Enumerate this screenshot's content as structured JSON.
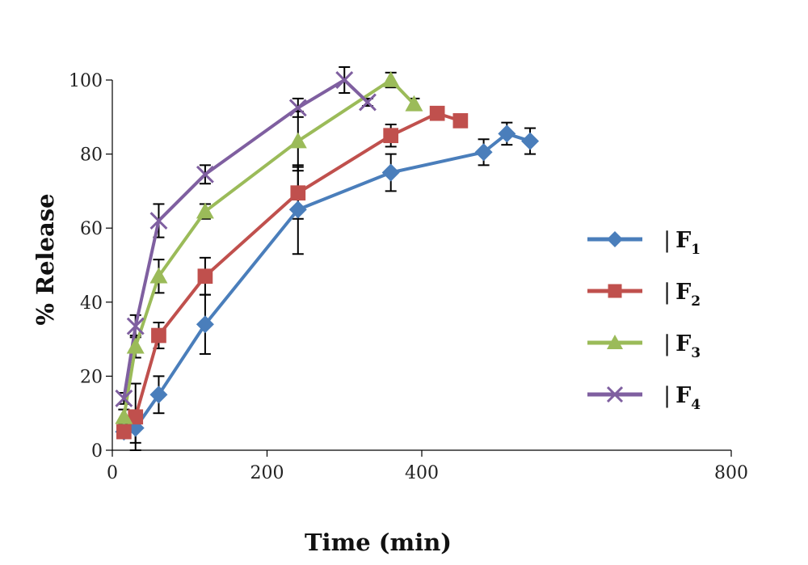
{
  "chart_data": {
    "type": "line",
    "title": "",
    "xlabel": "Time (min)",
    "ylabel": "% Release",
    "xlim": [
      0,
      800
    ],
    "ylim": [
      0,
      100
    ],
    "xticks": [
      0,
      200,
      400,
      800
    ],
    "yticks": [
      0,
      20,
      40,
      60,
      80,
      100
    ],
    "grid": false,
    "legend_position": "right",
    "series": [
      {
        "name": "F1",
        "color": "#4a7ebb",
        "marker": "diamond",
        "x": [
          15,
          30,
          60,
          120,
          240,
          360,
          480,
          510,
          540
        ],
        "y": [
          5,
          6,
          15,
          34,
          65,
          75,
          80.5,
          85.5,
          83.5
        ],
        "err": [
          1,
          4,
          5,
          8,
          12,
          5,
          3.5,
          3,
          3.5
        ]
      },
      {
        "name": "F2",
        "color": "#c0504d",
        "marker": "square",
        "x": [
          15,
          30,
          60,
          120,
          240,
          360,
          420,
          450
        ],
        "y": [
          5,
          9,
          31,
          47,
          69.5,
          85,
          91,
          89
        ],
        "err": [
          1,
          9,
          3.5,
          5,
          7,
          3,
          1,
          1
        ]
      },
      {
        "name": "F3",
        "color": "#9bbb59",
        "marker": "triangle",
        "x": [
          15,
          30,
          60,
          120,
          240,
          360,
          390
        ],
        "y": [
          9,
          28,
          47,
          64.5,
          83.5,
          100,
          93.5
        ],
        "err": [
          2,
          3,
          4.5,
          2,
          8,
          2,
          1.5
        ]
      },
      {
        "name": "F4",
        "color": "#7f5fa0",
        "marker": "x",
        "x": [
          15,
          30,
          60,
          120,
          240,
          300,
          330
        ],
        "y": [
          14,
          33.5,
          62,
          74.5,
          92.5,
          100,
          94
        ],
        "err": [
          1.5,
          3,
          4.5,
          2.5,
          2.5,
          3.5,
          1
        ]
      }
    ],
    "legend_labels": [
      {
        "bar": "|",
        "main": "F",
        "sub": "1"
      },
      {
        "bar": "|",
        "main": "F",
        "sub": "2"
      },
      {
        "bar": "|",
        "main": "F",
        "sub": "3"
      },
      {
        "bar": "|",
        "main": "F",
        "sub": "4"
      }
    ]
  }
}
